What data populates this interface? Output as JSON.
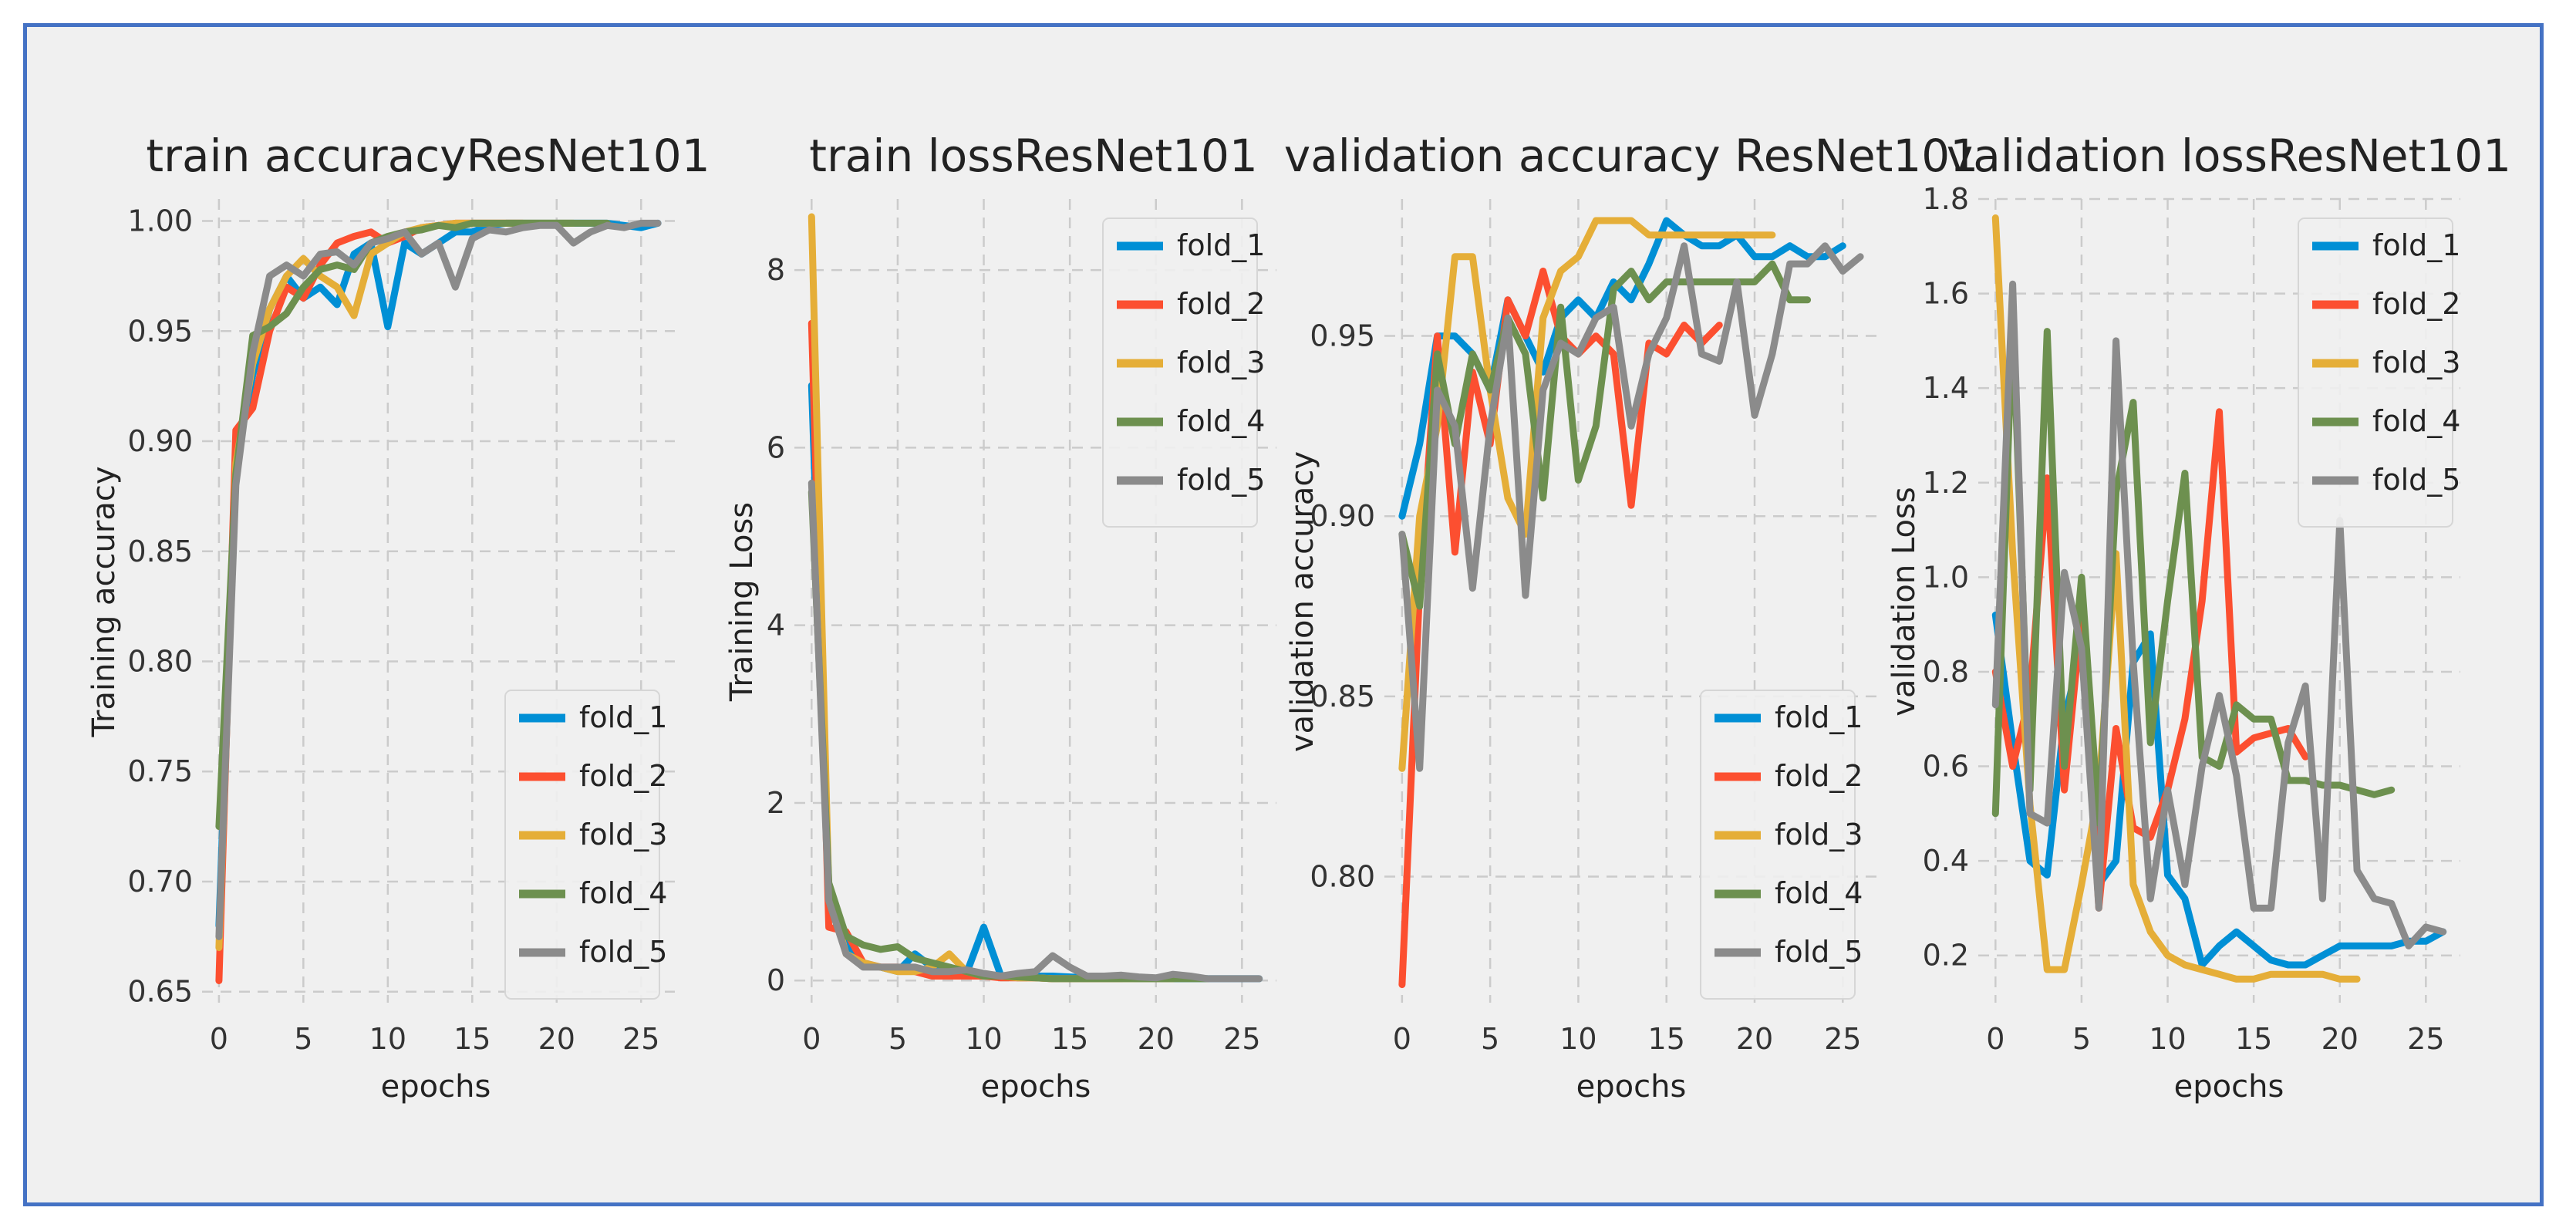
{
  "colors": {
    "fold_1": "#008fd5",
    "fold_2": "#fc4f30",
    "fold_3": "#e5ae38",
    "fold_4": "#6d904f",
    "fold_5": "#8b8b8b",
    "frame": "#4472c4",
    "panel_bg": "#f0f0f0",
    "grid": "#cbcbcb"
  },
  "chart_data": [
    {
      "type": "line",
      "title": "train accuracyResNet101",
      "xlabel": "epochs",
      "ylabel": "Training accuracy",
      "xlim": [
        -1,
        27
      ],
      "ylim": [
        0.645,
        1.01
      ],
      "xticks": [
        0,
        5,
        10,
        15,
        20,
        25
      ],
      "xtick_labels": [
        "0",
        "5",
        "10",
        "15",
        "20",
        "25"
      ],
      "yticks": [
        0.65,
        0.7,
        0.75,
        0.8,
        0.85,
        0.9,
        0.95,
        1.0
      ],
      "ytick_labels": [
        "0.65",
        "0.70",
        "0.75",
        "0.80",
        "0.85",
        "0.90",
        "0.95",
        "1.00"
      ],
      "grid": true,
      "legend": "lower-right",
      "series": [
        {
          "name": "fold_1",
          "values": [
            0.68,
            0.89,
            0.93,
            0.96,
            0.975,
            0.965,
            0.97,
            0.962,
            0.985,
            0.99,
            0.952,
            0.99,
            0.985,
            0.99,
            0.995,
            0.995,
            0.998,
            0.999,
            0.999,
            0.999,
            0.999,
            0.999,
            0.999,
            0.999,
            0.998,
            0.997,
            0.999
          ]
        },
        {
          "name": "fold_2",
          "values": [
            0.655,
            0.905,
            0.915,
            0.95,
            0.97,
            0.965,
            0.98,
            0.99,
            0.993,
            0.995,
            0.99,
            0.993,
            0.997,
            0.998,
            0.999,
            0.999,
            0.999,
            0.999,
            0.999
          ]
        },
        {
          "name": "fold_3",
          "values": [
            0.67,
            0.89,
            0.935,
            0.96,
            0.975,
            0.983,
            0.975,
            0.97,
            0.957,
            0.985,
            0.99,
            0.995,
            0.997,
            0.998,
            0.999,
            0.999,
            0.999,
            0.999,
            0.999,
            0.999,
            0.999,
            0.999
          ]
        },
        {
          "name": "fold_4",
          "values": [
            0.725,
            0.885,
            0.948,
            0.952,
            0.958,
            0.97,
            0.978,
            0.98,
            0.978,
            0.99,
            0.993,
            0.995,
            0.996,
            0.998,
            0.997,
            0.999,
            0.999,
            0.999,
            0.999,
            0.999,
            0.999,
            0.999,
            0.999,
            0.999
          ]
        },
        {
          "name": "fold_5",
          "values": [
            0.675,
            0.88,
            0.94,
            0.975,
            0.98,
            0.975,
            0.985,
            0.986,
            0.98,
            0.99,
            0.992,
            0.995,
            0.985,
            0.99,
            0.97,
            0.992,
            0.996,
            0.995,
            0.997,
            0.998,
            0.998,
            0.99,
            0.995,
            0.998,
            0.997,
            0.999,
            0.999
          ]
        }
      ]
    },
    {
      "type": "line",
      "title": "train lossResNet101",
      "xlabel": "epochs",
      "ylabel": "Training Loss",
      "xlim": [
        -1,
        27
      ],
      "ylim": [
        -0.25,
        8.8
      ],
      "xticks": [
        0,
        5,
        10,
        15,
        20,
        25
      ],
      "xtick_labels": [
        "0",
        "5",
        "10",
        "15",
        "20",
        "25"
      ],
      "yticks": [
        0,
        2,
        4,
        6,
        8
      ],
      "ytick_labels": [
        "0",
        "2",
        "4",
        "6",
        "8"
      ],
      "grid": true,
      "legend": "upper-right",
      "series": [
        {
          "name": "fold_1",
          "values": [
            6.7,
            1.0,
            0.4,
            0.2,
            0.15,
            0.1,
            0.3,
            0.15,
            0.1,
            0.08,
            0.6,
            0.05,
            0.04,
            0.05,
            0.05,
            0.04,
            0.03,
            0.03,
            0.03,
            0.02,
            0.02,
            0.02,
            0.02,
            0.02,
            0.02,
            0.02,
            0.02
          ]
        },
        {
          "name": "fold_2",
          "values": [
            7.4,
            0.6,
            0.55,
            0.2,
            0.15,
            0.15,
            0.1,
            0.05,
            0.05,
            0.05,
            0.05,
            0.03,
            0.03,
            0.03,
            0.02,
            0.02,
            0.02,
            0.02,
            0.02
          ]
        },
        {
          "name": "fold_3",
          "values": [
            8.6,
            1.0,
            0.3,
            0.2,
            0.15,
            0.1,
            0.1,
            0.15,
            0.3,
            0.1,
            0.05,
            0.05,
            0.03,
            0.03,
            0.02,
            0.02,
            0.02,
            0.02,
            0.02,
            0.02,
            0.02,
            0.02
          ]
        },
        {
          "name": "fold_4",
          "values": [
            5.5,
            1.1,
            0.5,
            0.4,
            0.35,
            0.38,
            0.25,
            0.2,
            0.15,
            0.1,
            0.05,
            0.05,
            0.04,
            0.03,
            0.02,
            0.02,
            0.02,
            0.02,
            0.02,
            0.02,
            0.02,
            0.02,
            0.02,
            0.02
          ]
        },
        {
          "name": "fold_5",
          "values": [
            5.6,
            0.9,
            0.3,
            0.15,
            0.15,
            0.15,
            0.15,
            0.1,
            0.1,
            0.12,
            0.08,
            0.05,
            0.08,
            0.1,
            0.28,
            0.15,
            0.05,
            0.05,
            0.06,
            0.04,
            0.03,
            0.07,
            0.05,
            0.02,
            0.02,
            0.02,
            0.02
          ]
        }
      ]
    },
    {
      "type": "line",
      "title": "validation accuracy ResNet101",
      "xlabel": "epochs",
      "ylabel": "validation accuracy",
      "xlim": [
        -1,
        27
      ],
      "ylim": [
        0.765,
        0.988
      ],
      "xticks": [
        0,
        5,
        10,
        15,
        20,
        25
      ],
      "xtick_labels": [
        "0",
        "5",
        "10",
        "15",
        "20",
        "25"
      ],
      "yticks": [
        0.8,
        0.85,
        0.9,
        0.95
      ],
      "ytick_labels": [
        "0.80",
        "0.85",
        "0.90",
        "0.95"
      ],
      "grid": true,
      "legend": "lower-right",
      "series": [
        {
          "name": "fold_1",
          "values": [
            0.9,
            0.92,
            0.95,
            0.95,
            0.945,
            0.935,
            0.96,
            0.95,
            0.94,
            0.955,
            0.96,
            0.955,
            0.965,
            0.96,
            0.97,
            0.982,
            0.978,
            0.975,
            0.975,
            0.978,
            0.972,
            0.972,
            0.975,
            0.972,
            0.972,
            0.975
          ]
        },
        {
          "name": "fold_2",
          "values": [
            0.77,
            0.88,
            0.95,
            0.89,
            0.94,
            0.92,
            0.96,
            0.95,
            0.968,
            0.95,
            0.945,
            0.95,
            0.945,
            0.903,
            0.948,
            0.945,
            0.953,
            0.948,
            0.953
          ]
        },
        {
          "name": "fold_3",
          "values": [
            0.83,
            0.9,
            0.925,
            0.972,
            0.972,
            0.935,
            0.905,
            0.895,
            0.955,
            0.968,
            0.972,
            0.982,
            0.982,
            0.982,
            0.978,
            0.978,
            0.978,
            0.978,
            0.978,
            0.978,
            0.978,
            0.978
          ]
        },
        {
          "name": "fold_4",
          "values": [
            0.895,
            0.875,
            0.945,
            0.92,
            0.945,
            0.935,
            0.955,
            0.945,
            0.905,
            0.958,
            0.91,
            0.925,
            0.963,
            0.968,
            0.96,
            0.965,
            0.965,
            0.965,
            0.965,
            0.965,
            0.965,
            0.97,
            0.96,
            0.96
          ]
        },
        {
          "name": "fold_5",
          "values": [
            0.895,
            0.83,
            0.935,
            0.925,
            0.88,
            0.925,
            0.955,
            0.878,
            0.935,
            0.948,
            0.945,
            0.955,
            0.958,
            0.925,
            0.945,
            0.955,
            0.975,
            0.945,
            0.943,
            0.965,
            0.928,
            0.945,
            0.97,
            0.97,
            0.975,
            0.968,
            0.972
          ]
        }
      ]
    },
    {
      "type": "line",
      "title": "validation lossResNet101",
      "xlabel": "epochs",
      "ylabel": "validation Loss",
      "xlim": [
        -1,
        27
      ],
      "ylim": [
        0.1,
        1.8
      ],
      "xticks": [
        0,
        5,
        10,
        15,
        20,
        25
      ],
      "xtick_labels": [
        "0",
        "5",
        "10",
        "15",
        "20",
        "25"
      ],
      "yticks": [
        0.2,
        0.4,
        0.6,
        0.8,
        1.0,
        1.2,
        1.4,
        1.6,
        1.8
      ],
      "ytick_labels": [
        "0.2",
        "0.4",
        "0.6",
        "0.8",
        "1.0",
        "1.2",
        "1.4",
        "1.6",
        "1.8"
      ],
      "grid": true,
      "legend": "upper-right",
      "series": [
        {
          "name": "fold_1",
          "values": [
            0.92,
            0.65,
            0.4,
            0.37,
            0.7,
            0.85,
            0.35,
            0.4,
            0.82,
            0.88,
            0.37,
            0.32,
            0.18,
            0.22,
            0.25,
            0.22,
            0.19,
            0.18,
            0.18,
            0.2,
            0.22,
            0.22,
            0.22,
            0.22,
            0.23,
            0.23,
            0.25
          ]
        },
        {
          "name": "fold_2",
          "values": [
            0.8,
            0.6,
            0.75,
            1.21,
            0.55,
            0.92,
            0.3,
            0.68,
            0.47,
            0.45,
            0.55,
            0.7,
            0.95,
            1.35,
            0.63,
            0.66,
            0.67,
            0.68,
            0.62
          ]
        },
        {
          "name": "fold_3",
          "values": [
            1.76,
            1.05,
            0.52,
            0.17,
            0.17,
            0.35,
            0.55,
            1.05,
            0.35,
            0.25,
            0.2,
            0.18,
            0.17,
            0.16,
            0.15,
            0.15,
            0.16,
            0.16,
            0.16,
            0.16,
            0.15,
            0.15
          ]
        },
        {
          "name": "fold_4",
          "values": [
            0.5,
            1.55,
            0.55,
            1.52,
            0.6,
            1.0,
            0.48,
            1.18,
            1.37,
            0.65,
            0.95,
            1.22,
            0.62,
            0.6,
            0.73,
            0.7,
            0.7,
            0.57,
            0.57,
            0.56,
            0.56,
            0.55,
            0.54,
            0.55
          ]
        },
        {
          "name": "fold_5",
          "values": [
            0.73,
            1.62,
            0.5,
            0.48,
            1.01,
            0.85,
            0.3,
            1.5,
            0.82,
            0.32,
            0.55,
            0.35,
            0.6,
            0.75,
            0.58,
            0.3,
            0.3,
            0.65,
            0.77,
            0.32,
            1.12,
            0.38,
            0.32,
            0.31,
            0.22,
            0.26,
            0.25
          ]
        }
      ]
    }
  ]
}
